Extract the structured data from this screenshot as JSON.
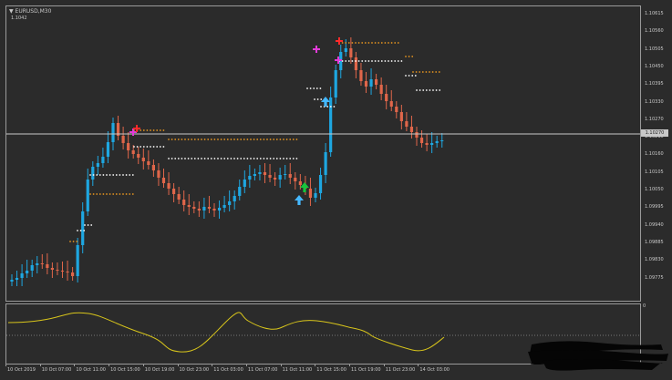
{
  "window": {
    "symbol": "▼ EURUSD,M30",
    "symbol_value": "1.1042"
  },
  "price_scale": {
    "labels": [
      "1.10615",
      "1.10560",
      "1.10505",
      "1.10450",
      "1.10395",
      "1.10330",
      "1.10270",
      "1.10215",
      "1.10160",
      "1.10105",
      "1.10050",
      "1.09995",
      "1.09940",
      "1.09885",
      "1.09830",
      "1.09775"
    ],
    "current_price": "1.10270"
  },
  "indicator_scale": {
    "top": "0",
    "bottom": "-0"
  },
  "time_axis": {
    "labels": [
      "10 Oct 2019",
      "10 Oct 07:00",
      "10 Oct 11:00",
      "10 Oct 15:00",
      "10 Oct 19:00",
      "10 Oct 23:00",
      "11 Oct 03:00",
      "11 Oct 07:00",
      "11 Oct 11:00",
      "11 Oct 15:00",
      "11 Oct 19:00",
      "11 Oct 23:00",
      "14 Oct 03:00"
    ]
  },
  "colors": {
    "background": "#2b2b2b",
    "bull_candle": "#1ea7e1",
    "bear_candle": "#e0664a",
    "orange_dots": "#e8961f",
    "white_dots": "#ffffff",
    "oscillator_line": "#d8c51b",
    "price_line": "#c8c8c8",
    "up_arrow_green": "#16c53c",
    "up_arrow_blue": "#45b8ff",
    "marker_magenta": "#e23bd8",
    "marker_red": "#ff2a2a"
  },
  "icons": {
    "up_arrow": "arrow-up-icon",
    "cross_marker": "cross-marker-icon",
    "redaction": "redaction-scribble"
  }
}
